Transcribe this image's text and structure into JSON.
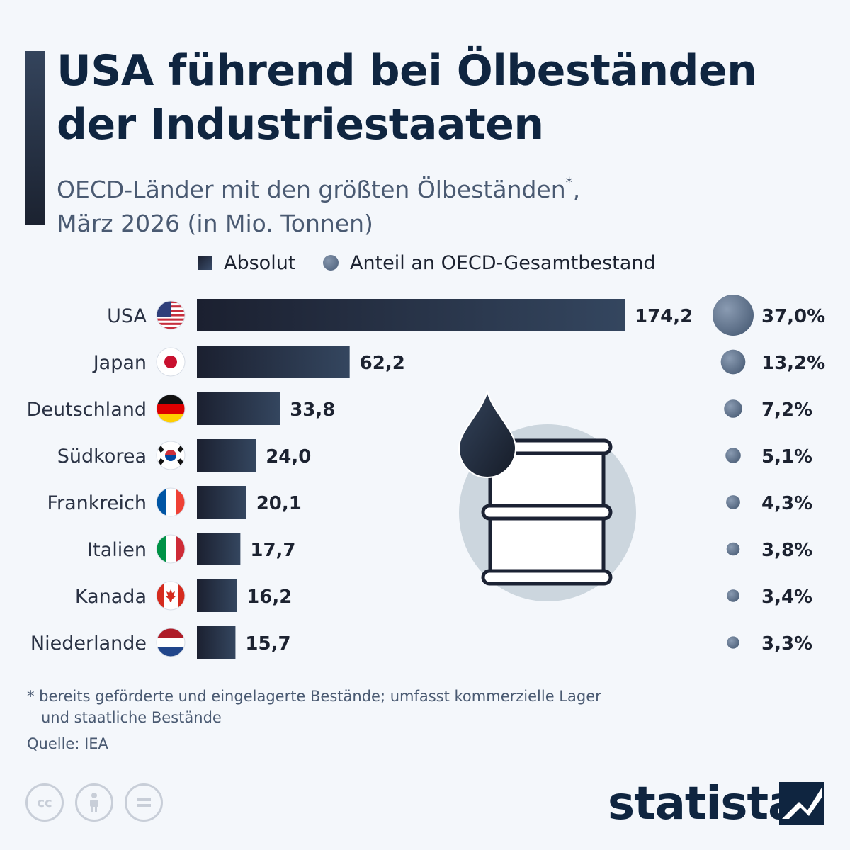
{
  "header": {
    "title_line1": "USA führend bei Ölbeständen",
    "title_line2": "der Industriestaaten",
    "subtitle_line1": "OECD-Länder mit den größten Ölbeständen",
    "subtitle_star": "*",
    "subtitle_line1_end": ",",
    "subtitle_line2": "März 2026 (in Mio. Tonnen)"
  },
  "legend": {
    "absolut": "Absolut",
    "anteil": "Anteil an OECD-Gesamtbestand"
  },
  "chart_data": {
    "type": "bar",
    "categories": [
      "USA",
      "Japan",
      "Deutschland",
      "Südkorea",
      "Frankreich",
      "Italien",
      "Kanada",
      "Niederlande"
    ],
    "series": [
      {
        "name": "Absolut",
        "values": [
          174.2,
          62.2,
          33.8,
          24.0,
          20.1,
          17.7,
          16.2,
          15.7
        ],
        "labels": [
          "174,2",
          "62,2",
          "33,8",
          "24,0",
          "20,1",
          "17,7",
          "16,2",
          "15,7"
        ]
      },
      {
        "name": "Anteil an OECD-Gesamtbestand",
        "values": [
          37.0,
          13.2,
          7.2,
          5.1,
          4.3,
          3.8,
          3.4,
          3.3
        ],
        "labels": [
          "37,0%",
          "13,2%",
          "7,2%",
          "5,1%",
          "4,3%",
          "3,8%",
          "3,4%",
          "3,3%"
        ]
      }
    ],
    "flags": [
      "us",
      "jp",
      "de",
      "kr",
      "fr",
      "it",
      "ca",
      "nl"
    ],
    "orientation": "horizontal",
    "grid": false,
    "legend_position": "top"
  },
  "footnote": {
    "line1": "* bereits geförderte und eingelagerte Bestände; umfasst kommerzielle Lager",
    "line2": "und staatliche Bestände"
  },
  "source": "Quelle: IEA",
  "brand": "statista",
  "icons": [
    "oil-drop-icon",
    "oil-barrel-icon",
    "cc-icon",
    "attribution-icon",
    "noderivs-icon",
    "statista-logo-icon"
  ],
  "colors": {
    "title": "#0f2540",
    "bar_dark": "#1b2030",
    "bar_light": "#34465f",
    "bubble": "#5a6d88",
    "illustration_circle": "#ccd6de"
  }
}
